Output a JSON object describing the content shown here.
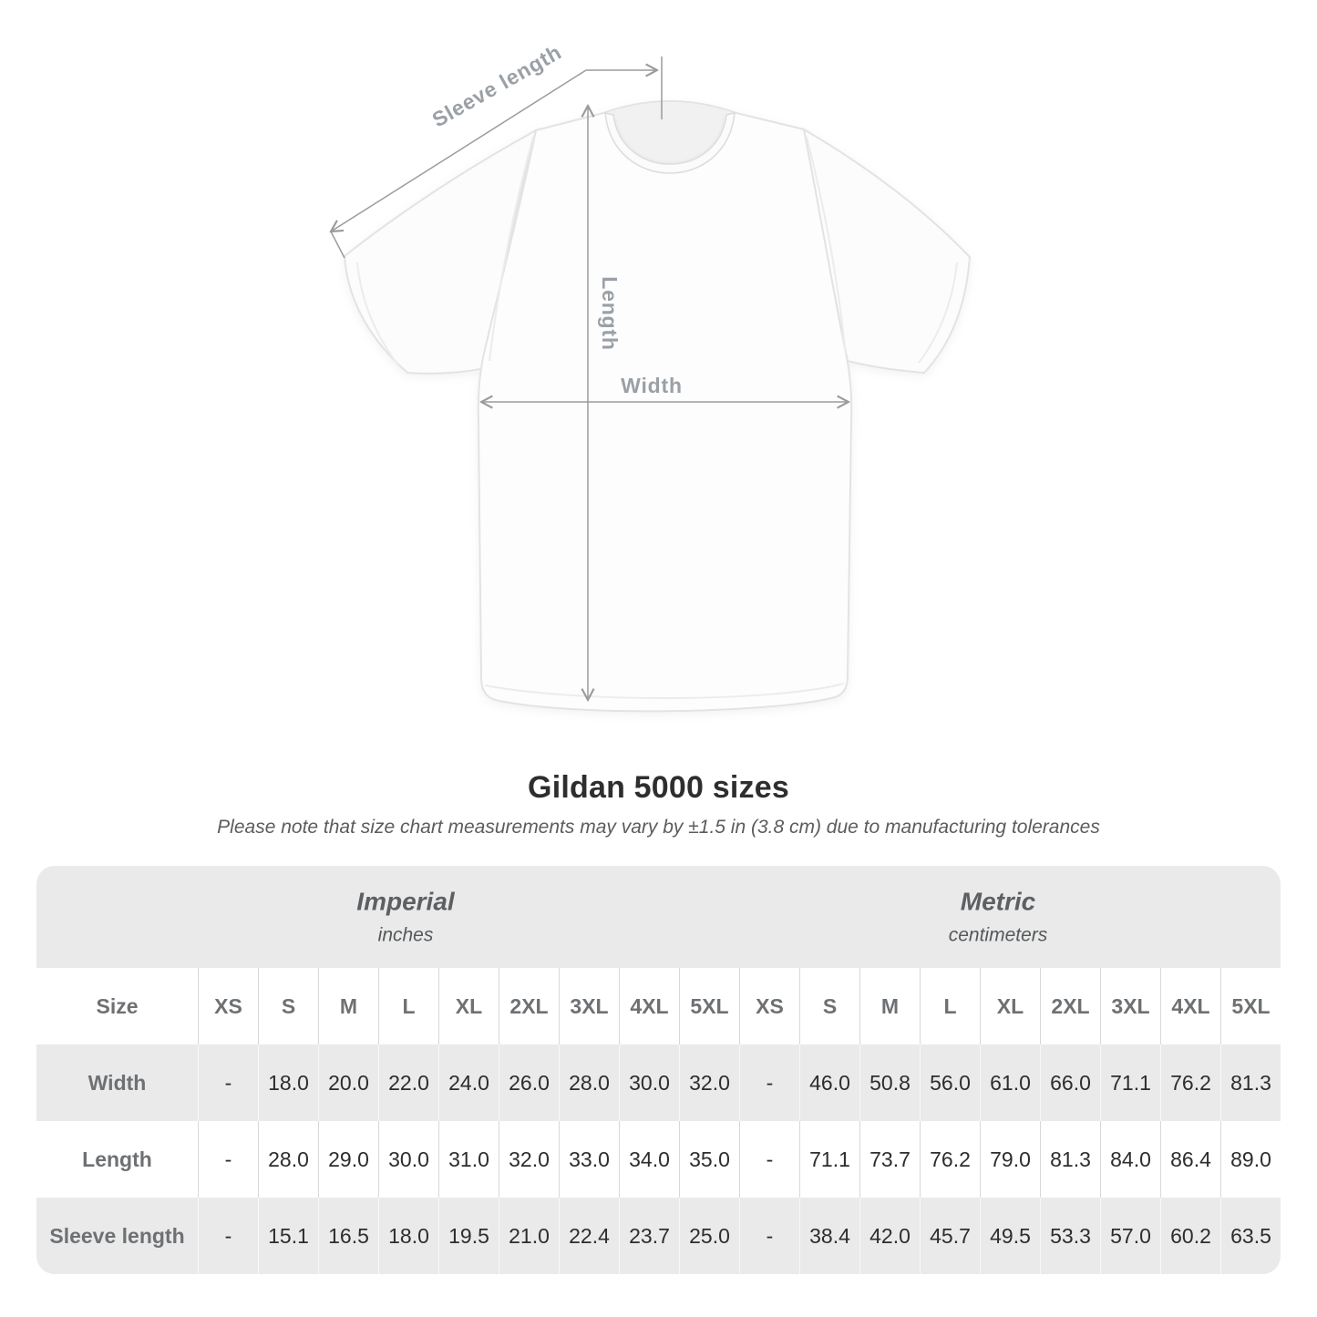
{
  "diagram": {
    "sleeve_label": "Sleeve length",
    "length_label": "Length",
    "width_label": "Width"
  },
  "title": "Gildan 5000 sizes",
  "subtitle": "Please note that size chart measurements may vary by ±1.5 in (3.8 cm) due to manufacturing tolerances",
  "colors": {
    "band_gray": "#eaeaea",
    "header_text_gray": "#6e7174",
    "value_text": "#2d2d2d",
    "dimension_line_gray": "#9b9b9b",
    "diagram_label_gray": "#9aa0a5"
  },
  "chart_data": {
    "type": "table",
    "title": "Gildan 5000 sizes",
    "note": "Please note that size chart measurements may vary by ±1.5 in (3.8 cm) due to manufacturing tolerances",
    "corner_header": "Size",
    "unit_groups": [
      {
        "label": "Imperial",
        "sublabel": "inches"
      },
      {
        "label": "Metric",
        "sublabel": "centimeters"
      }
    ],
    "sizes": [
      "XS",
      "S",
      "M",
      "L",
      "XL",
      "2XL",
      "3XL",
      "4XL",
      "5XL"
    ],
    "rows": [
      {
        "label": "Width",
        "imperial": [
          "-",
          "18.0",
          "20.0",
          "22.0",
          "24.0",
          "26.0",
          "28.0",
          "30.0",
          "32.0"
        ],
        "metric": [
          "-",
          "46.0",
          "50.8",
          "56.0",
          "61.0",
          "66.0",
          "71.1",
          "76.2",
          "81.3"
        ]
      },
      {
        "label": "Length",
        "imperial": [
          "-",
          "28.0",
          "29.0",
          "30.0",
          "31.0",
          "32.0",
          "33.0",
          "34.0",
          "35.0"
        ],
        "metric": [
          "-",
          "71.1",
          "73.7",
          "76.2",
          "79.0",
          "81.3",
          "84.0",
          "86.4",
          "89.0"
        ]
      },
      {
        "label": "Sleeve length",
        "imperial": [
          "-",
          "15.1",
          "16.5",
          "18.0",
          "19.5",
          "21.0",
          "22.4",
          "23.7",
          "25.0"
        ],
        "metric": [
          "-",
          "38.4",
          "42.0",
          "45.7",
          "49.5",
          "53.3",
          "57.0",
          "60.2",
          "63.5"
        ]
      }
    ]
  }
}
